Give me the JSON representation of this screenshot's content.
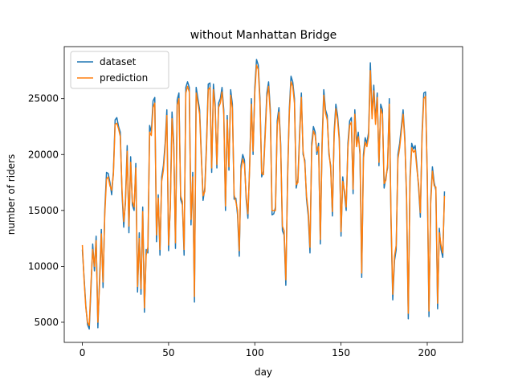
{
  "chart_data": {
    "type": "line",
    "title": "without Manhattan Bridge",
    "x_label": "day",
    "y_label": "number of riders",
    "x": [
      0,
      1,
      2,
      3,
      4,
      5,
      6,
      7,
      8,
      9,
      10,
      11,
      12,
      13,
      14,
      15,
      16,
      17,
      18,
      19,
      20,
      21,
      22,
      23,
      24,
      25,
      26,
      27,
      28,
      29,
      30,
      31,
      32,
      33,
      34,
      35,
      36,
      37,
      38,
      39,
      40,
      41,
      42,
      43,
      44,
      45,
      46,
      47,
      48,
      49,
      50,
      51,
      52,
      53,
      54,
      55,
      56,
      57,
      58,
      59,
      60,
      61,
      62,
      63,
      64,
      65,
      66,
      67,
      68,
      69,
      70,
      71,
      72,
      73,
      74,
      75,
      76,
      77,
      78,
      79,
      80,
      81,
      82,
      83,
      84,
      85,
      86,
      87,
      88,
      89,
      90,
      91,
      92,
      93,
      94,
      95,
      96,
      97,
      98,
      99,
      100,
      101,
      102,
      103,
      104,
      105,
      106,
      107,
      108,
      109,
      110,
      111,
      112,
      113,
      114,
      115,
      116,
      117,
      118,
      119,
      120,
      121,
      122,
      123,
      124,
      125,
      126,
      127,
      128,
      129,
      130,
      131,
      132,
      133,
      134,
      135,
      136,
      137,
      138,
      139,
      140,
      141,
      142,
      143,
      144,
      145,
      146,
      147,
      148,
      149,
      150,
      151,
      152,
      153,
      154,
      155,
      156,
      157,
      158,
      159,
      160,
      161,
      162,
      163,
      164,
      165,
      166,
      167,
      168,
      169,
      170,
      171,
      172,
      173,
      174,
      175,
      176,
      177,
      178,
      179,
      180,
      181,
      182,
      183,
      184,
      185,
      186,
      187,
      188,
      189,
      190,
      191,
      192,
      193,
      194,
      195,
      196,
      197,
      198,
      199,
      200,
      201,
      202,
      203,
      204,
      205,
      206,
      207,
      208,
      209,
      210
    ],
    "series": [
      {
        "name": "dataset",
        "color": "#1f77b4",
        "values": [
          11500,
          9000,
          6500,
          4800,
          4400,
          8000,
          12000,
          9600,
          12700,
          4500,
          9000,
          13300,
          8100,
          15000,
          18400,
          18300,
          17500,
          16400,
          18500,
          23100,
          23300,
          22500,
          22000,
          16500,
          13500,
          16000,
          20800,
          13000,
          19800,
          15500,
          15000,
          19200,
          7700,
          13000,
          7500,
          15300,
          5900,
          11500,
          11200,
          22600,
          22000,
          24800,
          25100,
          12200,
          16400,
          11000,
          18000,
          19000,
          21000,
          24000,
          11400,
          15500,
          23800,
          21000,
          11600,
          24900,
          25500,
          16000,
          15500,
          11000,
          26000,
          26500,
          26000,
          13700,
          18400,
          6800,
          26000,
          25000,
          24000,
          20000,
          15900,
          17000,
          21000,
          26300,
          26400,
          18400,
          26300,
          24500,
          18800,
          24600,
          25000,
          26000,
          24000,
          15000,
          23500,
          18600,
          25800,
          24500,
          16000,
          16100,
          14600,
          10900,
          19000,
          20000,
          19500,
          16000,
          14300,
          19000,
          25000,
          20000,
          26000,
          28500,
          28000,
          25000,
          18000,
          18500,
          22000,
          25500,
          26500,
          24000,
          14600,
          14700,
          15300,
          23000,
          24200,
          21000,
          13200,
          12800,
          8300,
          18000,
          24000,
          27000,
          26500,
          25000,
          17000,
          17800,
          22000,
          25500,
          20000,
          19500,
          16000,
          14500,
          11200,
          21000,
          22500,
          22000,
          20000,
          21000,
          12000,
          21000,
          25800,
          24000,
          23500,
          20000,
          19000,
          14500,
          22000,
          24500,
          23500,
          21500,
          12700,
          18000,
          16500,
          15000,
          21000,
          23000,
          23300,
          16500,
          24000,
          21000,
          22000,
          20000,
          9000,
          20000,
          21500,
          21000,
          22000,
          28200,
          23500,
          26200,
          23000,
          25500,
          19000,
          24500,
          24000,
          17000,
          18000,
          18800,
          25000,
          14000,
          7000,
          10500,
          11500,
          20000,
          21000,
          22500,
          24000,
          21500,
          16000,
          5300,
          18000,
          21000,
          20500,
          20800,
          19000,
          17000,
          14400,
          22000,
          25500,
          25600,
          18000,
          5500,
          16000,
          18900,
          17500,
          16800,
          6200,
          13400,
          11500,
          10800,
          16700
        ]
      },
      {
        "name": "prediction",
        "color": "#ff7f0e",
        "values": [
          11900,
          8800,
          6300,
          5000,
          4700,
          8500,
          11500,
          10000,
          12300,
          5000,
          8500,
          12900,
          8600,
          14600,
          17800,
          18000,
          17200,
          16800,
          18200,
          22700,
          22800,
          22300,
          21600,
          16800,
          14000,
          15600,
          20300,
          13600,
          19300,
          15800,
          15300,
          18800,
          8200,
          12500,
          8000,
          14900,
          6300,
          11000,
          11700,
          22000,
          21700,
          24200,
          24600,
          12800,
          16100,
          11500,
          17600,
          18600,
          20600,
          23500,
          11900,
          15200,
          23200,
          20700,
          12100,
          24400,
          25000,
          16300,
          15800,
          11500,
          25500,
          26100,
          25600,
          14200,
          18000,
          7300,
          25500,
          24600,
          23600,
          19700,
          16300,
          16700,
          20600,
          25800,
          26000,
          18800,
          25800,
          24100,
          19100,
          24200,
          24600,
          25600,
          23600,
          15400,
          23100,
          18900,
          25300,
          24100,
          16400,
          15800,
          15000,
          11400,
          18600,
          19600,
          19100,
          16300,
          14700,
          18700,
          24500,
          20300,
          25500,
          28000,
          27600,
          24600,
          18300,
          18200,
          21600,
          25100,
          26100,
          23600,
          15000,
          15000,
          15000,
          22600,
          23800,
          20700,
          13600,
          13200,
          8800,
          17600,
          23600,
          26500,
          26100,
          24600,
          17300,
          17500,
          21600,
          25100,
          20300,
          19200,
          16300,
          14900,
          11700,
          20600,
          22100,
          21700,
          20300,
          20700,
          12400,
          20600,
          25300,
          23700,
          23100,
          20300,
          18700,
          14900,
          21600,
          24100,
          23100,
          21200,
          13100,
          17600,
          16800,
          15300,
          20600,
          22600,
          22900,
          16900,
          23600,
          20700,
          21600,
          20300,
          9400,
          19600,
          21100,
          20700,
          21600,
          27500,
          23200,
          25700,
          22700,
          25100,
          19300,
          24100,
          23600,
          17400,
          17700,
          19100,
          24500,
          14400,
          7500,
          10900,
          11900,
          19600,
          20600,
          22100,
          23600,
          21200,
          16400,
          5800,
          17600,
          20600,
          20200,
          20400,
          18700,
          17300,
          14800,
          21600,
          25000,
          25200,
          18300,
          6000,
          15600,
          18500,
          17200,
          17100,
          6700,
          13000,
          11900,
          11200,
          16300
        ]
      }
    ],
    "xlim": [
      -10.5,
      220.5
    ],
    "xticks": [
      0,
      50,
      100,
      150,
      200
    ],
    "ylim": [
      3200,
      29650
    ],
    "yticks": [
      5000,
      10000,
      15000,
      20000,
      25000
    ],
    "legend": "upper left"
  }
}
